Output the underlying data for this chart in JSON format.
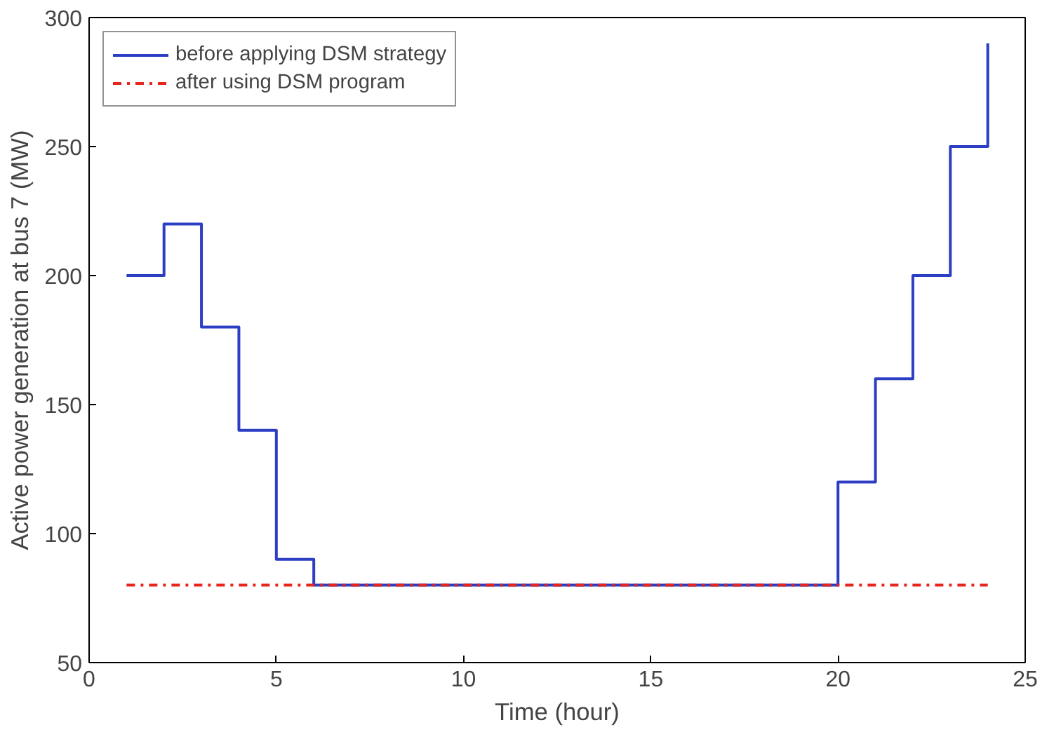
{
  "chart_data": {
    "type": "step",
    "xlabel": "Time (hour)",
    "ylabel": "Active power generation at bus 7 (MW)",
    "series": [
      {
        "name": "before applying DSM strategy",
        "color": "#2b3ec4",
        "line_style": "solid",
        "x": [
          1,
          2,
          3,
          4,
          5,
          6,
          7,
          8,
          9,
          10,
          11,
          12,
          13,
          14,
          15,
          16,
          17,
          18,
          19,
          20,
          21,
          22,
          23,
          24
        ],
        "values": [
          200,
          220,
          180,
          140,
          90,
          80,
          80,
          80,
          80,
          80,
          80,
          80,
          80,
          80,
          80,
          80,
          80,
          80,
          80,
          120,
          160,
          200,
          250,
          290
        ]
      },
      {
        "name": "after using DSM program",
        "color": "#e8251c",
        "type": "line",
        "line_style": "dashdot",
        "x": [
          1,
          24
        ],
        "values": [
          80,
          80
        ]
      }
    ],
    "xlim": [
      0,
      25
    ],
    "xticks": [
      0,
      5,
      10,
      15,
      20,
      25
    ],
    "ylim": [
      50,
      300
    ],
    "yticks": [
      50,
      100,
      150,
      200,
      250,
      300
    ],
    "grid": false,
    "legend": "top left"
  }
}
